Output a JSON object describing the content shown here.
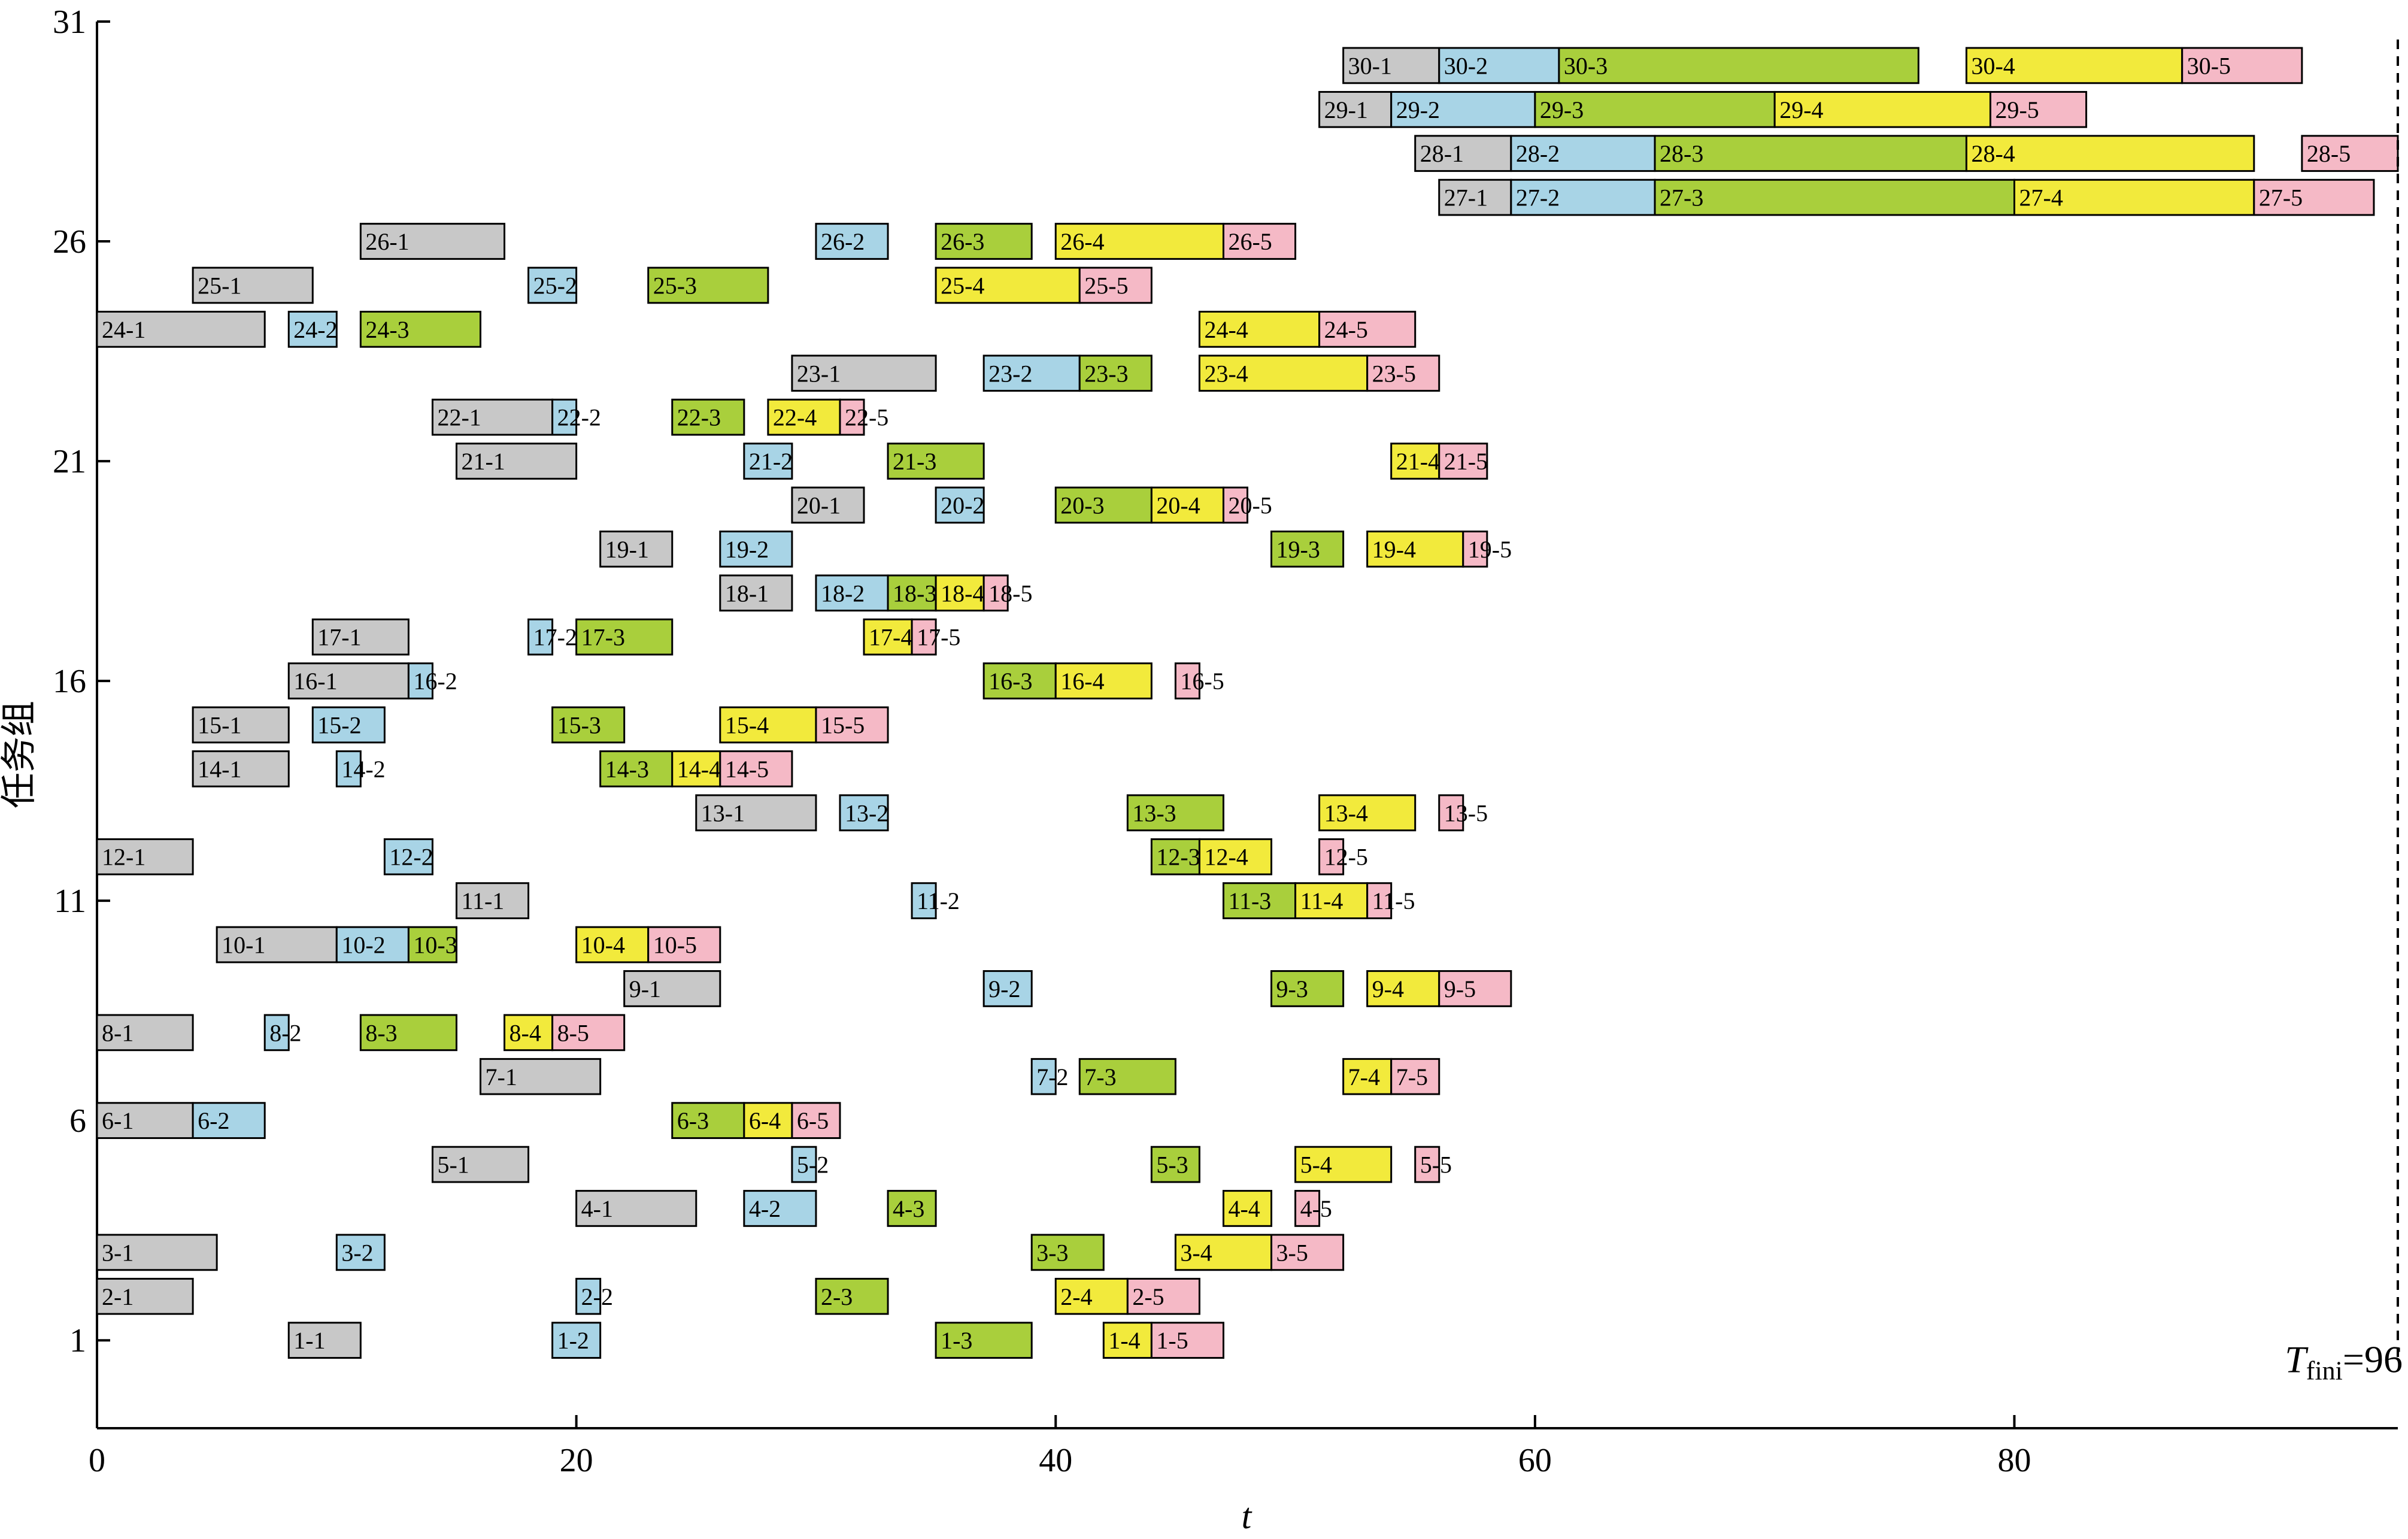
{
  "chart_data": {
    "type": "gantt",
    "xlabel": "t",
    "ylabel": "任务组",
    "xlim": [
      0,
      96
    ],
    "ylim": [
      -1,
      31
    ],
    "x_ticks": [
      0,
      20,
      40,
      60,
      80
    ],
    "y_ticks": [
      1,
      6,
      11,
      16,
      21,
      26,
      31
    ],
    "grid": false,
    "stage_colors": {
      "1": "#c8c8c8",
      "2": "#a8d4e6",
      "3": "#a9cf3c",
      "4": "#f2ea3c",
      "5": "#f5b9c6"
    },
    "t_fini": {
      "symbol": "T",
      "subscript": "fini",
      "text": "=96",
      "value": 96
    },
    "tasks": [
      {
        "label": "1-1",
        "stage": 1,
        "y": 1,
        "start": 8,
        "end": 11
      },
      {
        "label": "1-2",
        "stage": 2,
        "y": 1,
        "start": 19,
        "end": 21
      },
      {
        "label": "1-3",
        "stage": 3,
        "y": 1,
        "start": 35,
        "end": 39
      },
      {
        "label": "1-4",
        "stage": 4,
        "y": 1,
        "start": 42,
        "end": 44
      },
      {
        "label": "1-5",
        "stage": 5,
        "y": 1,
        "start": 44,
        "end": 47
      },
      {
        "label": "2-1",
        "stage": 1,
        "y": 2,
        "start": 0,
        "end": 4
      },
      {
        "label": "2-2",
        "stage": 2,
        "y": 2,
        "start": 20,
        "end": 21
      },
      {
        "label": "2-3",
        "stage": 3,
        "y": 2,
        "start": 30,
        "end": 33
      },
      {
        "label": "2-4",
        "stage": 4,
        "y": 2,
        "start": 40,
        "end": 43
      },
      {
        "label": "2-5",
        "stage": 5,
        "y": 2,
        "start": 43,
        "end": 46
      },
      {
        "label": "3-1",
        "stage": 1,
        "y": 3,
        "start": 0,
        "end": 5
      },
      {
        "label": "3-2",
        "stage": 2,
        "y": 3,
        "start": 10,
        "end": 12
      },
      {
        "label": "3-3",
        "stage": 3,
        "y": 3,
        "start": 39,
        "end": 42
      },
      {
        "label": "3-4",
        "stage": 4,
        "y": 3,
        "start": 45,
        "end": 49
      },
      {
        "label": "3-5",
        "stage": 5,
        "y": 3,
        "start": 49,
        "end": 52
      },
      {
        "label": "4-1",
        "stage": 1,
        "y": 4,
        "start": 20,
        "end": 25
      },
      {
        "label": "4-2",
        "stage": 2,
        "y": 4,
        "start": 27,
        "end": 30
      },
      {
        "label": "4-3",
        "stage": 3,
        "y": 4,
        "start": 33,
        "end": 35
      },
      {
        "label": "4-4",
        "stage": 4,
        "y": 4,
        "start": 47,
        "end": 49
      },
      {
        "label": "4-5",
        "stage": 5,
        "y": 4,
        "start": 50,
        "end": 51
      },
      {
        "label": "5-1",
        "stage": 1,
        "y": 5,
        "start": 14,
        "end": 18
      },
      {
        "label": "5-2",
        "stage": 2,
        "y": 5,
        "start": 29,
        "end": 30
      },
      {
        "label": "5-3",
        "stage": 3,
        "y": 5,
        "start": 44,
        "end": 46
      },
      {
        "label": "5-4",
        "stage": 4,
        "y": 5,
        "start": 50,
        "end": 54
      },
      {
        "label": "5-5",
        "stage": 5,
        "y": 5,
        "start": 55,
        "end": 56
      },
      {
        "label": "6-1",
        "stage": 1,
        "y": 6,
        "start": 0,
        "end": 4
      },
      {
        "label": "6-2",
        "stage": 2,
        "y": 6,
        "start": 4,
        "end": 7
      },
      {
        "label": "6-3",
        "stage": 3,
        "y": 6,
        "start": 24,
        "end": 27
      },
      {
        "label": "6-4",
        "stage": 4,
        "y": 6,
        "start": 27,
        "end": 29
      },
      {
        "label": "6-5",
        "stage": 5,
        "y": 6,
        "start": 29,
        "end": 31
      },
      {
        "label": "7-1",
        "stage": 1,
        "y": 7,
        "start": 16,
        "end": 21
      },
      {
        "label": "7-2",
        "stage": 2,
        "y": 7,
        "start": 39,
        "end": 40
      },
      {
        "label": "7-3",
        "stage": 3,
        "y": 7,
        "start": 41,
        "end": 45
      },
      {
        "label": "7-4",
        "stage": 4,
        "y": 7,
        "start": 52,
        "end": 54
      },
      {
        "label": "7-5",
        "stage": 5,
        "y": 7,
        "start": 54,
        "end": 56
      },
      {
        "label": "8-1",
        "stage": 1,
        "y": 8,
        "start": 0,
        "end": 4
      },
      {
        "label": "8-2",
        "stage": 2,
        "y": 8,
        "start": 7,
        "end": 8
      },
      {
        "label": "8-3",
        "stage": 3,
        "y": 8,
        "start": 11,
        "end": 15
      },
      {
        "label": "8-4",
        "stage": 4,
        "y": 8,
        "start": 17,
        "end": 19
      },
      {
        "label": "8-5",
        "stage": 5,
        "y": 8,
        "start": 19,
        "end": 22
      },
      {
        "label": "9-1",
        "stage": 1,
        "y": 9,
        "start": 22,
        "end": 26
      },
      {
        "label": "9-2",
        "stage": 2,
        "y": 9,
        "start": 37,
        "end": 39
      },
      {
        "label": "9-3",
        "stage": 3,
        "y": 9,
        "start": 49,
        "end": 52
      },
      {
        "label": "9-4",
        "stage": 4,
        "y": 9,
        "start": 53,
        "end": 56
      },
      {
        "label": "9-5",
        "stage": 5,
        "y": 9,
        "start": 56,
        "end": 59
      },
      {
        "label": "10-1",
        "stage": 1,
        "y": 10,
        "start": 5,
        "end": 10
      },
      {
        "label": "10-2",
        "stage": 2,
        "y": 10,
        "start": 10,
        "end": 13
      },
      {
        "label": "10-3",
        "stage": 3,
        "y": 10,
        "start": 13,
        "end": 15
      },
      {
        "label": "10-4",
        "stage": 4,
        "y": 10,
        "start": 20,
        "end": 23
      },
      {
        "label": "10-5",
        "stage": 5,
        "y": 10,
        "start": 23,
        "end": 26
      },
      {
        "label": "11-1",
        "stage": 1,
        "y": 11,
        "start": 15,
        "end": 18
      },
      {
        "label": "11-2",
        "stage": 2,
        "y": 11,
        "start": 34,
        "end": 35
      },
      {
        "label": "11-3",
        "stage": 3,
        "y": 11,
        "start": 47,
        "end": 50
      },
      {
        "label": "11-4",
        "stage": 4,
        "y": 11,
        "start": 50,
        "end": 53
      },
      {
        "label": "11-5",
        "stage": 5,
        "y": 11,
        "start": 53,
        "end": 54
      },
      {
        "label": "12-1",
        "stage": 1,
        "y": 12,
        "start": 0,
        "end": 4
      },
      {
        "label": "12-2",
        "stage": 2,
        "y": 12,
        "start": 12,
        "end": 14
      },
      {
        "label": "12-3",
        "stage": 3,
        "y": 12,
        "start": 44,
        "end": 46
      },
      {
        "label": "12-4",
        "stage": 4,
        "y": 12,
        "start": 46,
        "end": 49
      },
      {
        "label": "12-5",
        "stage": 5,
        "y": 12,
        "start": 51,
        "end": 52
      },
      {
        "label": "13-1",
        "stage": 1,
        "y": 13,
        "start": 25,
        "end": 30
      },
      {
        "label": "13-2",
        "stage": 2,
        "y": 13,
        "start": 31,
        "end": 33
      },
      {
        "label": "13-3",
        "stage": 3,
        "y": 13,
        "start": 43,
        "end": 47
      },
      {
        "label": "13-4",
        "stage": 4,
        "y": 13,
        "start": 51,
        "end": 55
      },
      {
        "label": "13-5",
        "stage": 5,
        "y": 13,
        "start": 56,
        "end": 57
      },
      {
        "label": "14-1",
        "stage": 1,
        "y": 14,
        "start": 4,
        "end": 8
      },
      {
        "label": "14-2",
        "stage": 2,
        "y": 14,
        "start": 10,
        "end": 11
      },
      {
        "label": "14-3",
        "stage": 3,
        "y": 14,
        "start": 21,
        "end": 24
      },
      {
        "label": "14-4",
        "stage": 4,
        "y": 14,
        "start": 24,
        "end": 26
      },
      {
        "label": "14-5",
        "stage": 5,
        "y": 14,
        "start": 26,
        "end": 29
      },
      {
        "label": "15-1",
        "stage": 1,
        "y": 15,
        "start": 4,
        "end": 8
      },
      {
        "label": "15-2",
        "stage": 2,
        "y": 15,
        "start": 9,
        "end": 12
      },
      {
        "label": "15-3",
        "stage": 3,
        "y": 15,
        "start": 19,
        "end": 22
      },
      {
        "label": "15-4",
        "stage": 4,
        "y": 15,
        "start": 26,
        "end": 30
      },
      {
        "label": "15-5",
        "stage": 5,
        "y": 15,
        "start": 30,
        "end": 33
      },
      {
        "label": "16-1",
        "stage": 1,
        "y": 16,
        "start": 8,
        "end": 13
      },
      {
        "label": "16-2",
        "stage": 2,
        "y": 16,
        "start": 13,
        "end": 14
      },
      {
        "label": "16-3",
        "stage": 3,
        "y": 16,
        "start": 37,
        "end": 40
      },
      {
        "label": "16-4",
        "stage": 4,
        "y": 16,
        "start": 40,
        "end": 44
      },
      {
        "label": "16-5",
        "stage": 5,
        "y": 16,
        "start": 45,
        "end": 46
      },
      {
        "label": "17-1",
        "stage": 1,
        "y": 17,
        "start": 9,
        "end": 13
      },
      {
        "label": "17-2",
        "stage": 2,
        "y": 17,
        "start": 18,
        "end": 19
      },
      {
        "label": "17-3",
        "stage": 3,
        "y": 17,
        "start": 20,
        "end": 24
      },
      {
        "label": "17-4",
        "stage": 4,
        "y": 17,
        "start": 32,
        "end": 34
      },
      {
        "label": "17-5",
        "stage": 5,
        "y": 17,
        "start": 34,
        "end": 35
      },
      {
        "label": "18-1",
        "stage": 1,
        "y": 18,
        "start": 26,
        "end": 29
      },
      {
        "label": "18-2",
        "stage": 2,
        "y": 18,
        "start": 30,
        "end": 33
      },
      {
        "label": "18-3",
        "stage": 3,
        "y": 18,
        "start": 33,
        "end": 35
      },
      {
        "label": "18-4",
        "stage": 4,
        "y": 18,
        "start": 35,
        "end": 37
      },
      {
        "label": "18-5",
        "stage": 5,
        "y": 18,
        "start": 37,
        "end": 38
      },
      {
        "label": "19-1",
        "stage": 1,
        "y": 19,
        "start": 21,
        "end": 24
      },
      {
        "label": "19-2",
        "stage": 2,
        "y": 19,
        "start": 26,
        "end": 29
      },
      {
        "label": "19-3",
        "stage": 3,
        "y": 19,
        "start": 49,
        "end": 52
      },
      {
        "label": "19-4",
        "stage": 4,
        "y": 19,
        "start": 53,
        "end": 57
      },
      {
        "label": "19-5",
        "stage": 5,
        "y": 19,
        "start": 57,
        "end": 58
      },
      {
        "label": "20-1",
        "stage": 1,
        "y": 20,
        "start": 29,
        "end": 32
      },
      {
        "label": "20-2",
        "stage": 2,
        "y": 20,
        "start": 35,
        "end": 37
      },
      {
        "label": "20-3",
        "stage": 3,
        "y": 20,
        "start": 40,
        "end": 44
      },
      {
        "label": "20-4",
        "stage": 4,
        "y": 20,
        "start": 44,
        "end": 47
      },
      {
        "label": "20-5",
        "stage": 5,
        "y": 20,
        "start": 47,
        "end": 48
      },
      {
        "label": "21-1",
        "stage": 1,
        "y": 21,
        "start": 15,
        "end": 20
      },
      {
        "label": "21-2",
        "stage": 2,
        "y": 21,
        "start": 27,
        "end": 29
      },
      {
        "label": "21-3",
        "stage": 3,
        "y": 21,
        "start": 33,
        "end": 37
      },
      {
        "label": "21-4",
        "stage": 4,
        "y": 21,
        "start": 54,
        "end": 56
      },
      {
        "label": "21-5",
        "stage": 5,
        "y": 21,
        "start": 56,
        "end": 58
      },
      {
        "label": "22-1",
        "stage": 1,
        "y": 22,
        "start": 14,
        "end": 19
      },
      {
        "label": "22-2",
        "stage": 2,
        "y": 22,
        "start": 19,
        "end": 20
      },
      {
        "label": "22-3",
        "stage": 3,
        "y": 22,
        "start": 24,
        "end": 27
      },
      {
        "label": "22-4",
        "stage": 4,
        "y": 22,
        "start": 28,
        "end": 31
      },
      {
        "label": "22-5",
        "stage": 5,
        "y": 22,
        "start": 31,
        "end": 32
      },
      {
        "label": "23-1",
        "stage": 1,
        "y": 23,
        "start": 29,
        "end": 35
      },
      {
        "label": "23-2",
        "stage": 2,
        "y": 23,
        "start": 37,
        "end": 41
      },
      {
        "label": "23-3",
        "stage": 3,
        "y": 23,
        "start": 41,
        "end": 44
      },
      {
        "label": "23-4",
        "stage": 4,
        "y": 23,
        "start": 46,
        "end": 53
      },
      {
        "label": "23-5",
        "stage": 5,
        "y": 23,
        "start": 53,
        "end": 56
      },
      {
        "label": "24-1",
        "stage": 1,
        "y": 24,
        "start": 0,
        "end": 7
      },
      {
        "label": "24-2",
        "stage": 2,
        "y": 24,
        "start": 8,
        "end": 10
      },
      {
        "label": "24-3",
        "stage": 3,
        "y": 24,
        "start": 11,
        "end": 16
      },
      {
        "label": "24-4",
        "stage": 4,
        "y": 24,
        "start": 46,
        "end": 51
      },
      {
        "label": "24-5",
        "stage": 5,
        "y": 24,
        "start": 51,
        "end": 55
      },
      {
        "label": "25-1",
        "stage": 1,
        "y": 25,
        "start": 4,
        "end": 9
      },
      {
        "label": "25-2",
        "stage": 2,
        "y": 25,
        "start": 18,
        "end": 20
      },
      {
        "label": "25-3",
        "stage": 3,
        "y": 25,
        "start": 23,
        "end": 28
      },
      {
        "label": "25-4",
        "stage": 4,
        "y": 25,
        "start": 35,
        "end": 41
      },
      {
        "label": "25-5",
        "stage": 5,
        "y": 25,
        "start": 41,
        "end": 44
      },
      {
        "label": "26-1",
        "stage": 1,
        "y": 26,
        "start": 11,
        "end": 17
      },
      {
        "label": "26-2",
        "stage": 2,
        "y": 26,
        "start": 30,
        "end": 33
      },
      {
        "label": "26-3",
        "stage": 3,
        "y": 26,
        "start": 35,
        "end": 39
      },
      {
        "label": "26-4",
        "stage": 4,
        "y": 26,
        "start": 40,
        "end": 47
      },
      {
        "label": "26-5",
        "stage": 5,
        "y": 26,
        "start": 47,
        "end": 50
      },
      {
        "label": "27-1",
        "stage": 1,
        "y": 27,
        "start": 56,
        "end": 59
      },
      {
        "label": "27-2",
        "stage": 2,
        "y": 27,
        "start": 59,
        "end": 65
      },
      {
        "label": "27-3",
        "stage": 3,
        "y": 27,
        "start": 65,
        "end": 80
      },
      {
        "label": "27-4",
        "stage": 4,
        "y": 27,
        "start": 80,
        "end": 90
      },
      {
        "label": "27-5",
        "stage": 5,
        "y": 27,
        "start": 90,
        "end": 95
      },
      {
        "label": "28-1",
        "stage": 1,
        "y": 28,
        "start": 55,
        "end": 59
      },
      {
        "label": "28-2",
        "stage": 2,
        "y": 28,
        "start": 59,
        "end": 65
      },
      {
        "label": "28-3",
        "stage": 3,
        "y": 28,
        "start": 65,
        "end": 78
      },
      {
        "label": "28-4",
        "stage": 4,
        "y": 28,
        "start": 78,
        "end": 90
      },
      {
        "label": "28-5",
        "stage": 5,
        "y": 28,
        "start": 92,
        "end": 96
      },
      {
        "label": "29-1",
        "stage": 1,
        "y": 29,
        "start": 51,
        "end": 54
      },
      {
        "label": "29-2",
        "stage": 2,
        "y": 29,
        "start": 54,
        "end": 60
      },
      {
        "label": "29-3",
        "stage": 3,
        "y": 29,
        "start": 60,
        "end": 70
      },
      {
        "label": "29-4",
        "stage": 4,
        "y": 29,
        "start": 70,
        "end": 79
      },
      {
        "label": "29-5",
        "stage": 5,
        "y": 29,
        "start": 79,
        "end": 83
      },
      {
        "label": "30-1",
        "stage": 1,
        "y": 30,
        "start": 52,
        "end": 56
      },
      {
        "label": "30-2",
        "stage": 2,
        "y": 30,
        "start": 56,
        "end": 61
      },
      {
        "label": "30-3",
        "stage": 3,
        "y": 30,
        "start": 61,
        "end": 76
      },
      {
        "label": "30-4",
        "stage": 4,
        "y": 30,
        "start": 78,
        "end": 87
      },
      {
        "label": "30-5",
        "stage": 5,
        "y": 30,
        "start": 87,
        "end": 92
      }
    ]
  }
}
